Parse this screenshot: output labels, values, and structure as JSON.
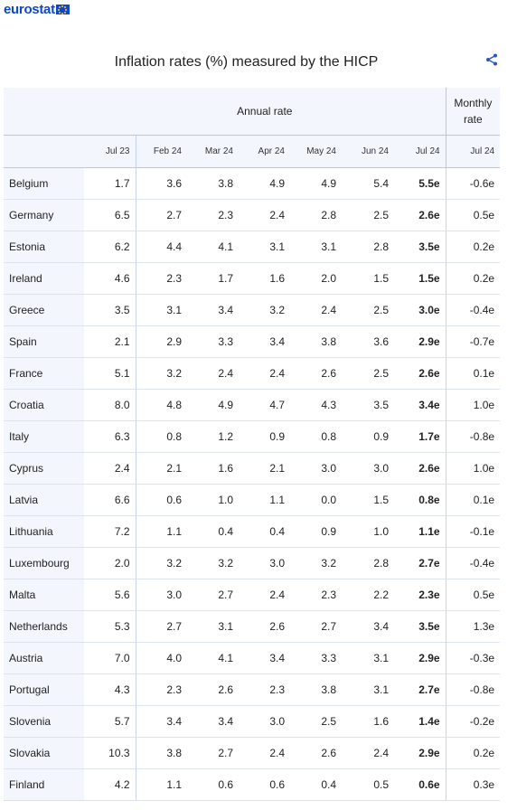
{
  "logo": {
    "text": "eurostat"
  },
  "chart_data": {
    "type": "table",
    "title": "Inflation rates (%) measured by the HICP",
    "group_headers": {
      "annual": "Annual rate",
      "monthly": "Monthly rate"
    },
    "columns": [
      "Jul 23",
      "Feb 24",
      "Mar 24",
      "Apr 24",
      "May 24",
      "Jun 24",
      "Jul 24",
      "Jul 24"
    ],
    "rows": [
      {
        "country": "Belgium",
        "values": [
          "1.7",
          "3.6",
          "3.8",
          "4.9",
          "4.9",
          "5.4",
          "5.5e",
          "-0.6e"
        ]
      },
      {
        "country": "Germany",
        "values": [
          "6.5",
          "2.7",
          "2.3",
          "2.4",
          "2.8",
          "2.5",
          "2.6e",
          "0.5e"
        ]
      },
      {
        "country": "Estonia",
        "values": [
          "6.2",
          "4.4",
          "4.1",
          "3.1",
          "3.1",
          "2.8",
          "3.5e",
          "0.2e"
        ]
      },
      {
        "country": "Ireland",
        "values": [
          "4.6",
          "2.3",
          "1.7",
          "1.6",
          "2.0",
          "1.5",
          "1.5e",
          "0.2e"
        ]
      },
      {
        "country": "Greece",
        "values": [
          "3.5",
          "3.1",
          "3.4",
          "3.2",
          "2.4",
          "2.5",
          "3.0e",
          "-0.4e"
        ]
      },
      {
        "country": "Spain",
        "values": [
          "2.1",
          "2.9",
          "3.3",
          "3.4",
          "3.8",
          "3.6",
          "2.9e",
          "-0.7e"
        ]
      },
      {
        "country": "France",
        "values": [
          "5.1",
          "3.2",
          "2.4",
          "2.4",
          "2.6",
          "2.5",
          "2.6e",
          "0.1e"
        ]
      },
      {
        "country": "Croatia",
        "values": [
          "8.0",
          "4.8",
          "4.9",
          "4.7",
          "4.3",
          "3.5",
          "3.4e",
          "1.0e"
        ]
      },
      {
        "country": "Italy",
        "values": [
          "6.3",
          "0.8",
          "1.2",
          "0.9",
          "0.8",
          "0.9",
          "1.7e",
          "-0.8e"
        ]
      },
      {
        "country": "Cyprus",
        "values": [
          "2.4",
          "2.1",
          "1.6",
          "2.1",
          "3.0",
          "3.0",
          "2.6e",
          "1.0e"
        ]
      },
      {
        "country": "Latvia",
        "values": [
          "6.6",
          "0.6",
          "1.0",
          "1.1",
          "0.0",
          "1.5",
          "0.8e",
          "0.1e"
        ]
      },
      {
        "country": "Lithuania",
        "values": [
          "7.2",
          "1.1",
          "0.4",
          "0.4",
          "0.9",
          "1.0",
          "1.1e",
          "-0.1e"
        ]
      },
      {
        "country": "Luxembourg",
        "values": [
          "2.0",
          "3.2",
          "3.2",
          "3.0",
          "3.2",
          "2.8",
          "2.7e",
          "-0.4e"
        ]
      },
      {
        "country": "Malta",
        "values": [
          "5.6",
          "3.0",
          "2.7",
          "2.4",
          "2.3",
          "2.2",
          "2.3e",
          "0.5e"
        ]
      },
      {
        "country": "Netherlands",
        "values": [
          "5.3",
          "2.7",
          "3.1",
          "2.6",
          "2.7",
          "3.4",
          "3.5e",
          "1.3e"
        ]
      },
      {
        "country": "Austria",
        "values": [
          "7.0",
          "4.0",
          "4.1",
          "3.4",
          "3.3",
          "3.1",
          "2.9e",
          "-0.3e"
        ]
      },
      {
        "country": "Portugal",
        "values": [
          "4.3",
          "2.3",
          "2.6",
          "2.3",
          "3.8",
          "3.1",
          "2.7e",
          "-0.8e"
        ]
      },
      {
        "country": "Slovenia",
        "values": [
          "5.7",
          "3.4",
          "3.4",
          "3.0",
          "2.5",
          "1.6",
          "1.4e",
          "-0.2e"
        ]
      },
      {
        "country": "Slovakia",
        "values": [
          "10.3",
          "3.8",
          "2.7",
          "2.4",
          "2.6",
          "2.4",
          "2.9e",
          "0.2e"
        ]
      },
      {
        "country": "Finland",
        "values": [
          "4.2",
          "1.1",
          "0.6",
          "0.6",
          "0.4",
          "0.5",
          "0.6e",
          "0.3e"
        ]
      }
    ]
  },
  "colors": {
    "brand": "#0e47cb",
    "header_bg": "#f3f6fc",
    "share": "#2a55c6"
  },
  "icons": {
    "share": "share-icon"
  }
}
